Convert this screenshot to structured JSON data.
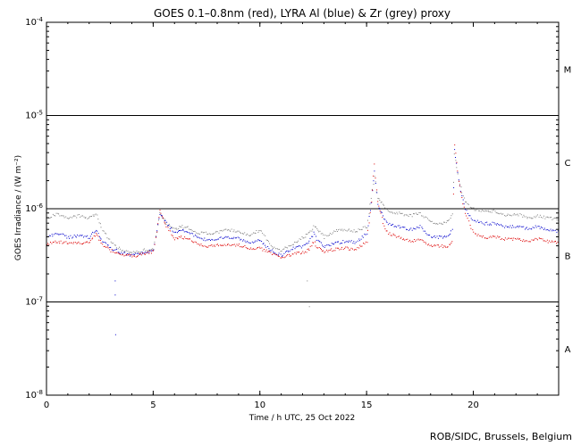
{
  "chart_data": {
    "type": "scatter",
    "title": "GOES 0.1–0.8nm (red), LYRA Al (blue) & Zr (grey) proxy",
    "xlabel": "Time / h UTC, 25 Oct 2022",
    "ylabel": "GOES Irradiance / (W m⁻²)",
    "xlim": [
      0,
      24
    ],
    "ylim": [
      1e-08,
      0.0001
    ],
    "log_y": true,
    "x_ticks": [
      0,
      5,
      10,
      15,
      20
    ],
    "y_ticks": [
      {
        "value": 1e-08,
        "base": "10",
        "exp": "-8"
      },
      {
        "value": 1e-07,
        "base": "10",
        "exp": "-7"
      },
      {
        "value": 1e-06,
        "base": "10",
        "exp": "-6"
      },
      {
        "value": 1e-05,
        "base": "10",
        "exp": "-5"
      },
      {
        "value": 0.0001,
        "base": "10",
        "exp": "-4"
      }
    ],
    "class_lines": [
      1e-07,
      1e-06,
      1e-05
    ],
    "flare_classes": [
      {
        "label": "A",
        "y": 3.16e-08
      },
      {
        "label": "B",
        "y": 3.16e-07
      },
      {
        "label": "C",
        "y": 3.16e-06
      },
      {
        "label": "M",
        "y": 3.16e-05
      }
    ],
    "series": [
      {
        "color": "#808080",
        "x": [
          0.0,
          0.5,
          1.0,
          1.5,
          2.0,
          2.3,
          2.6,
          3.0,
          3.5,
          4.0,
          4.5,
          5.0,
          5.3,
          5.6,
          6.0,
          6.3,
          6.6,
          7.0,
          7.5,
          8.0,
          8.5,
          9.0,
          9.5,
          10.0,
          10.5,
          11.0,
          11.5,
          12.0,
          12.3,
          12.5,
          12.7,
          13.0,
          13.5,
          14.0,
          14.5,
          15.0,
          15.2,
          15.35,
          15.5,
          15.8,
          16.0,
          16.5,
          17.0,
          17.5,
          18.0,
          18.5,
          18.8,
          19.0,
          19.1,
          19.3,
          19.6,
          20.0,
          20.5,
          21.0,
          21.5,
          22.0,
          22.5,
          23.0,
          23.5,
          24.0
        ],
        "y": [
          8e-07,
          9e-07,
          8e-07,
          8.5e-07,
          8e-07,
          9e-07,
          6e-07,
          4.5e-07,
          3.6e-07,
          3.4e-07,
          3.6e-07,
          3.8e-07,
          9e-07,
          7e-07,
          6e-07,
          6.5e-07,
          6.3e-07,
          5.5e-07,
          5.5e-07,
          5.6e-07,
          6e-07,
          5.8e-07,
          5.2e-07,
          6e-07,
          4e-07,
          3.6e-07,
          4.2e-07,
          5e-07,
          5.5e-07,
          6.5e-07,
          6e-07,
          5e-07,
          5.8e-07,
          6e-07,
          5.8e-07,
          6.5e-07,
          1.3e-06,
          2.3e-06,
          1.3e-06,
          1.1e-06,
          9.5e-07,
          9e-07,
          8.5e-07,
          9e-07,
          7.2e-07,
          7e-07,
          7.5e-07,
          9e-07,
          4e-06,
          2e-06,
          1.2e-06,
          1e-06,
          9.5e-07,
          9.5e-07,
          8.5e-07,
          9e-07,
          8e-07,
          8.5e-07,
          8e-07,
          7.8e-07
        ]
      },
      {
        "color": "#0000cc",
        "x": [
          0.0,
          0.5,
          1.0,
          1.5,
          2.0,
          2.3,
          2.6,
          3.0,
          3.5,
          4.0,
          4.5,
          5.0,
          5.3,
          5.6,
          6.0,
          6.3,
          6.6,
          7.0,
          7.5,
          8.0,
          8.5,
          9.0,
          9.5,
          10.0,
          10.5,
          11.0,
          11.5,
          12.0,
          12.3,
          12.5,
          12.7,
          13.0,
          13.5,
          14.0,
          14.5,
          15.0,
          15.2,
          15.35,
          15.5,
          15.8,
          16.0,
          16.5,
          17.0,
          17.5,
          18.0,
          18.5,
          18.8,
          19.0,
          19.1,
          19.3,
          19.6,
          20.0,
          20.5,
          21.0,
          21.5,
          22.0,
          22.5,
          23.0,
          23.5,
          24.0
        ],
        "y": [
          5e-07,
          5.5e-07,
          5e-07,
          5.2e-07,
          5e-07,
          6e-07,
          4.5e-07,
          3.8e-07,
          3.4e-07,
          3.2e-07,
          3.4e-07,
          3.6e-07,
          9e-07,
          7e-07,
          5.5e-07,
          6e-07,
          5.8e-07,
          5e-07,
          4.7e-07,
          4.8e-07,
          5e-07,
          4.8e-07,
          4.4e-07,
          4.6e-07,
          3.6e-07,
          3.2e-07,
          3.8e-07,
          4e-07,
          4.5e-07,
          5.5e-07,
          4.5e-07,
          4e-07,
          4.3e-07,
          4.5e-07,
          4.4e-07,
          5.5e-07,
          1.2e-06,
          2.6e-06,
          1.1e-06,
          8e-07,
          7e-07,
          6.5e-07,
          6e-07,
          6.5e-07,
          5e-07,
          5e-07,
          5.2e-07,
          6e-07,
          4.5e-06,
          2e-06,
          1e-06,
          7.5e-07,
          7e-07,
          7e-07,
          6.5e-07,
          6.5e-07,
          6.2e-07,
          6.5e-07,
          6e-07,
          5.8e-07
        ]
      },
      {
        "color": "#dd0000",
        "x": [
          0.0,
          0.5,
          1.0,
          1.5,
          2.0,
          2.3,
          2.6,
          3.0,
          3.5,
          4.0,
          4.5,
          5.0,
          5.3,
          5.6,
          6.0,
          6.3,
          6.6,
          7.0,
          7.5,
          8.0,
          8.5,
          9.0,
          9.5,
          10.0,
          10.5,
          11.0,
          11.5,
          12.0,
          12.3,
          12.5,
          12.7,
          13.0,
          13.5,
          14.0,
          14.5,
          15.0,
          15.2,
          15.35,
          15.5,
          15.8,
          16.0,
          16.5,
          17.0,
          17.5,
          18.0,
          18.5,
          18.8,
          19.0,
          19.1,
          19.3,
          19.6,
          20.0,
          20.5,
          21.0,
          21.5,
          22.0,
          22.5,
          23.0,
          23.5,
          24.0
        ],
        "y": [
          4.2e-07,
          4.5e-07,
          4.3e-07,
          4.4e-07,
          4.3e-07,
          5.5e-07,
          4.2e-07,
          3.6e-07,
          3.3e-07,
          3.1e-07,
          3.3e-07,
          3.5e-07,
          9.5e-07,
          6.5e-07,
          4.8e-07,
          5e-07,
          4.8e-07,
          4.3e-07,
          4e-07,
          4.1e-07,
          4.2e-07,
          4.1e-07,
          3.8e-07,
          3.8e-07,
          3.4e-07,
          3e-07,
          3.3e-07,
          3.4e-07,
          3.7e-07,
          4.5e-07,
          3.8e-07,
          3.5e-07,
          3.7e-07,
          3.8e-07,
          3.7e-07,
          4.5e-07,
          1.2e-06,
          3e-06,
          1.2e-06,
          6.5e-07,
          5.5e-07,
          5e-07,
          4.5e-07,
          4.8e-07,
          4e-07,
          4e-07,
          4e-07,
          4.5e-07,
          5e-06,
          2e-06,
          9e-07,
          5.5e-07,
          5e-07,
          5e-07,
          4.8e-07,
          4.8e-07,
          4.5e-07,
          4.8e-07,
          4.5e-07,
          4.3e-07
        ]
      }
    ],
    "outliers": [
      {
        "color": "#0000cc",
        "x": 3.2,
        "y": 1.7e-07
      },
      {
        "color": "#0000cc",
        "x": 3.2,
        "y": 1.2e-07
      },
      {
        "color": "#0000cc",
        "x": 3.22,
        "y": 4.5e-08
      },
      {
        "color": "#808080",
        "x": 12.2,
        "y": 1.7e-07
      },
      {
        "color": "#808080",
        "x": 12.3,
        "y": 9e-08
      }
    ]
  },
  "credit": "ROB/SIDC, Brussels, Belgium"
}
